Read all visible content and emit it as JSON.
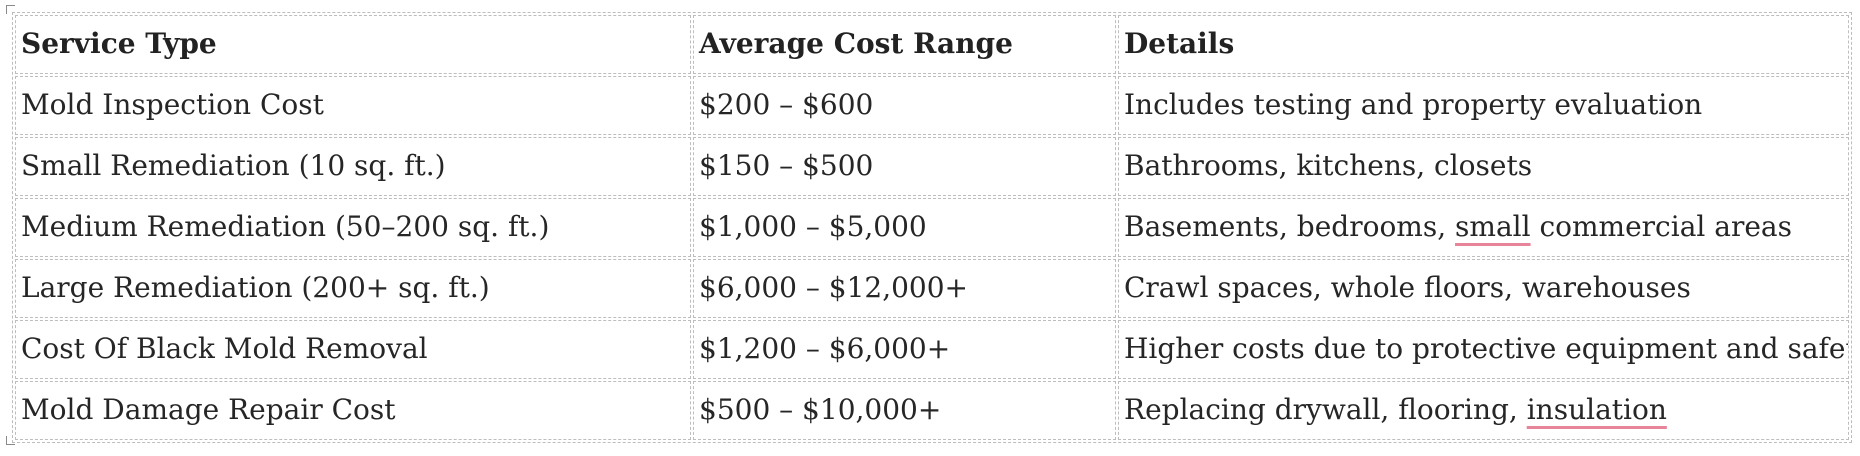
{
  "table": {
    "headers": [
      "Service Type",
      "Average Cost Range",
      "Details"
    ],
    "rows": [
      {
        "service": "Mold Inspection Cost",
        "cost": "$200 – $600",
        "details": {
          "before": "Includes testing and property evaluation",
          "flagged": "",
          "after": ""
        }
      },
      {
        "service": "Small Remediation (10 sq. ft.)",
        "cost": "$150 – $500",
        "details": {
          "before": "Bathrooms, kitchens, closets",
          "flagged": "",
          "after": ""
        }
      },
      {
        "service": "Medium Remediation (50–200 sq. ft.)",
        "cost": "$1,000 – $5,000",
        "details": {
          "before": "Basements, bedrooms, ",
          "flagged": "small",
          "after": " commercial areas"
        }
      },
      {
        "service": "Large Remediation (200+ sq. ft.)",
        "cost": "$6,000 – $12,000+",
        "details": {
          "before": "Crawl spaces, whole floors, warehouses",
          "flagged": "",
          "after": ""
        }
      },
      {
        "service": "Cost Of Black Mold Removal",
        "cost": "$1,200 – $6,000+",
        "details": {
          "before": "Higher costs due to protective equipment and safety",
          "flagged": "",
          "after": ""
        }
      },
      {
        "service": "Mold Damage Repair Cost",
        "cost": "$500 – $10,000+",
        "details": {
          "before": "Replacing drywall, flooring, ",
          "flagged": "insulation",
          "after": ""
        }
      }
    ]
  },
  "colors": {
    "text": "#262626",
    "border": "#bdbdbd",
    "spellcheck_underline": "#e8849a"
  }
}
